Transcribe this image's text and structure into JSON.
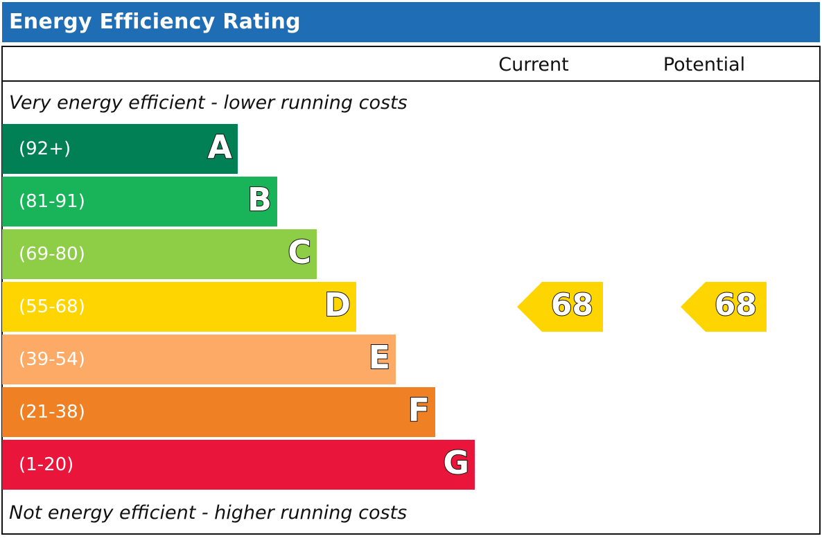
{
  "title": "Energy Efficiency Rating",
  "columns": {
    "current": "Current",
    "potential": "Potential"
  },
  "notes": {
    "top": "Very energy efficient - lower running costs",
    "bottom": "Not energy efficient - higher running costs"
  },
  "chart_data": {
    "type": "bar",
    "categories": [
      "A",
      "B",
      "C",
      "D",
      "E",
      "F",
      "G"
    ],
    "ranges": [
      "(92+)",
      "(81-91)",
      "(69-80)",
      "(55-68)",
      "(39-54)",
      "(21-38)",
      "(1-20)"
    ],
    "colors": [
      "#008054",
      "#19b459",
      "#8dce46",
      "#ffd500",
      "#fcaa65",
      "#ef8023",
      "#e9153b"
    ],
    "current": {
      "value": 68,
      "band": "D",
      "color": "#ffd500"
    },
    "potential": {
      "value": 68,
      "band": "D",
      "color": "#ffd500"
    }
  }
}
